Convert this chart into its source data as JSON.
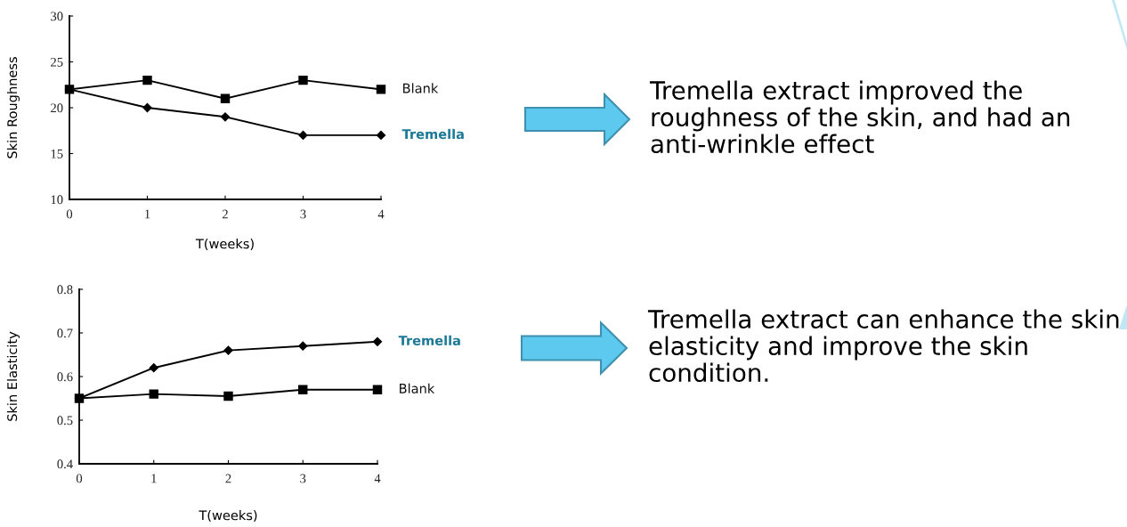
{
  "chart_data": [
    {
      "type": "line",
      "xlabel": "T(weeks)",
      "ylabel": "Skin Roughness",
      "x": [
        0,
        1,
        2,
        3,
        4
      ],
      "xlim": [
        0,
        4
      ],
      "xticks": [
        0,
        1,
        2,
        3,
        4
      ],
      "ylim": [
        10,
        30
      ],
      "yticks": [
        10,
        15,
        20,
        25,
        30
      ],
      "series": [
        {
          "name": "Blank",
          "color": "#000000",
          "marker": "square",
          "values": [
            22,
            23,
            21,
            23,
            22
          ]
        },
        {
          "name": "Tremella",
          "color": "#000000",
          "marker": "diamond",
          "values": [
            22,
            20,
            19,
            17,
            17
          ]
        }
      ],
      "annotations": [
        "Tremella extract improved the roughness of the skin, and had an anti-wrinkle effect"
      ]
    },
    {
      "type": "line",
      "xlabel": "T(weeks)",
      "ylabel": "Skin Elasticity",
      "x": [
        0,
        1,
        2,
        3,
        4
      ],
      "xlim": [
        0,
        4
      ],
      "xticks": [
        0,
        1,
        2,
        3,
        4
      ],
      "ylim": [
        0.4,
        0.8
      ],
      "yticks": [
        0.4,
        0.5,
        0.6,
        0.7,
        0.8
      ],
      "series": [
        {
          "name": "Tremella",
          "color": "#000000",
          "marker": "diamond",
          "values": [
            0.55,
            0.62,
            0.66,
            0.67,
            0.68
          ]
        },
        {
          "name": "Blank",
          "color": "#000000",
          "marker": "square",
          "values": [
            0.55,
            0.56,
            0.555,
            0.57,
            0.57
          ]
        }
      ],
      "annotations": [
        "Tremella extract can enhance the skin elasticity and improve the skin condition."
      ]
    }
  ]
}
